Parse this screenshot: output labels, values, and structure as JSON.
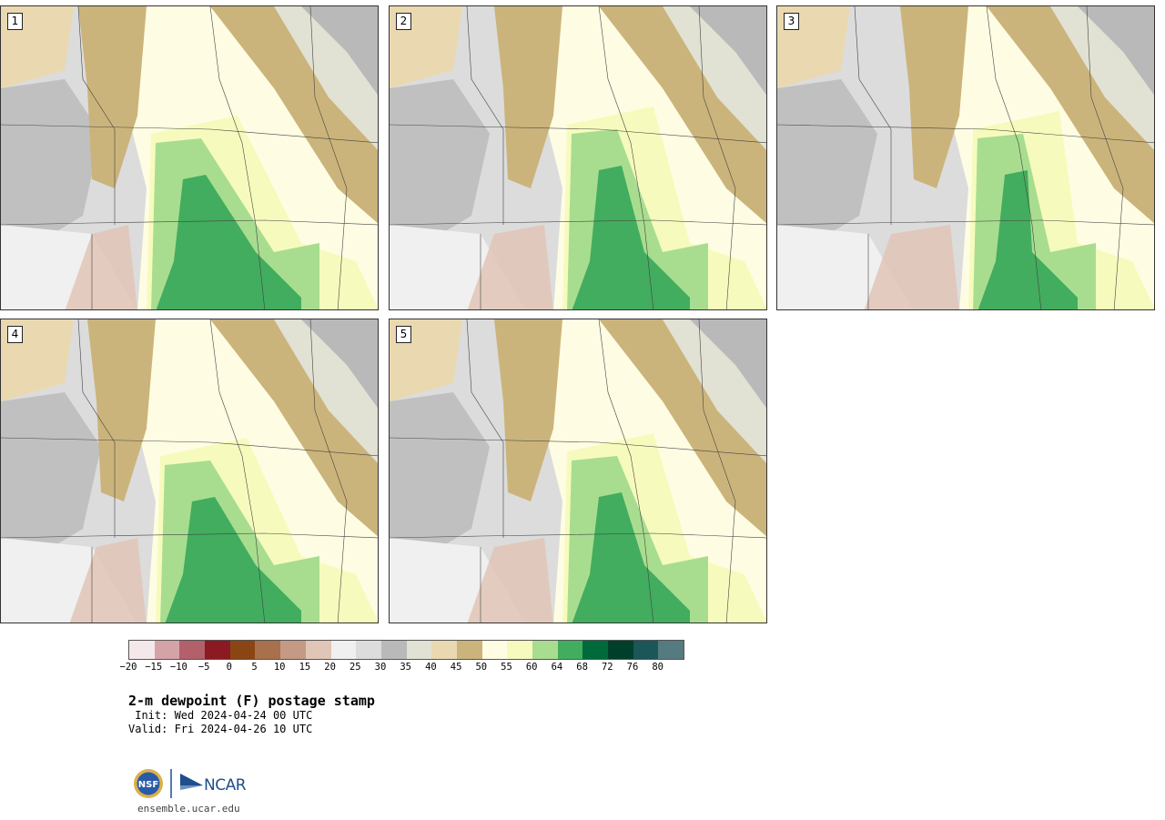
{
  "panels": [
    {
      "label": "1"
    },
    {
      "label": "2"
    },
    {
      "label": "3"
    },
    {
      "label": "4"
    },
    {
      "label": "5"
    }
  ],
  "colorbar": {
    "colors": [
      "#f5e8ea",
      "#d4a3a8",
      "#b2606a",
      "#8b1a22",
      "#8a4513",
      "#a9704c",
      "#c49a84",
      "#e0c6b6",
      "#f0f0f0",
      "#dcdcdc",
      "#b9b9b9",
      "#e1e1d4",
      "#ead9b0",
      "#cbb47b",
      "#fefde3",
      "#f6fbbd",
      "#a8dd8f",
      "#42ad5e",
      "#006b3a",
      "#00402a",
      "#1b5659",
      "#557a80"
    ],
    "tick_labels": [
      "−20",
      "−15",
      "−10",
      "−5",
      "0",
      "5",
      "10",
      "15",
      "20",
      "25",
      "30",
      "35",
      "40",
      "45",
      "50",
      "55",
      "60",
      "64",
      "68",
      "72",
      "76",
      "80"
    ]
  },
  "title": "2-m dewpoint (F) postage stamp",
  "init": " Init: Wed 2024-04-24 00 UTC",
  "valid": "Valid: Fri 2024-04-26 10 UTC",
  "logos": {
    "nsf": "NSF",
    "ncar": "NCAR"
  },
  "footer_url": "ensemble.ucar.edu"
}
